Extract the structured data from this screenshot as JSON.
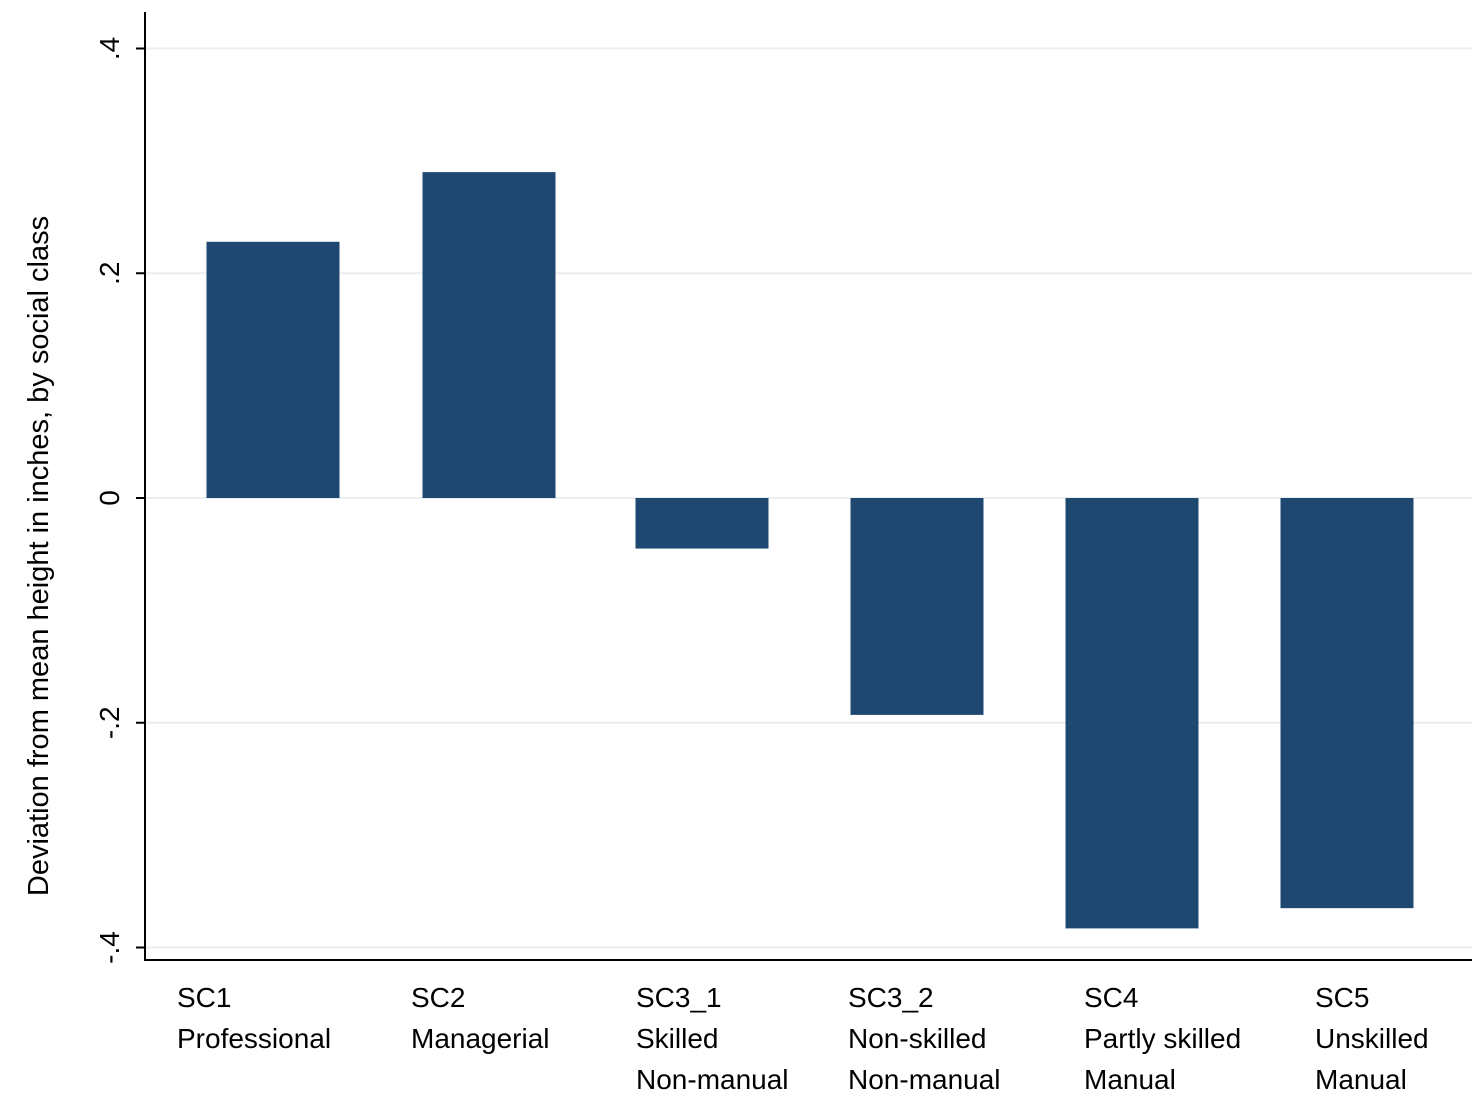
{
  "chart_data": {
    "type": "bar",
    "categories": [
      [
        "SC1",
        "Professional"
      ],
      [
        "SC2",
        "Managerial"
      ],
      [
        "SC3_1",
        "Skilled",
        "Non-manual"
      ],
      [
        "SC3_2",
        "Non-skilled",
        "Non-manual"
      ],
      [
        "SC4",
        "Partly skilled",
        "Manual"
      ],
      [
        "SC5",
        "Unskilled",
        "Manual"
      ]
    ],
    "values": [
      0.228,
      0.29,
      -0.045,
      -0.193,
      -0.383,
      -0.365
    ],
    "xlabel": "",
    "ylabel": "Deviation from mean height in inches, by social class",
    "ylim": [
      -0.42,
      0.43
    ],
    "yticks": [
      -0.4,
      -0.2,
      0,
      0.2,
      0.4
    ],
    "ytick_labels": [
      "-.4",
      "-.2",
      "0",
      ".2",
      ".4"
    ],
    "grid": true,
    "bar_color": "#1e4870",
    "grid_color": "#e9eef2"
  }
}
